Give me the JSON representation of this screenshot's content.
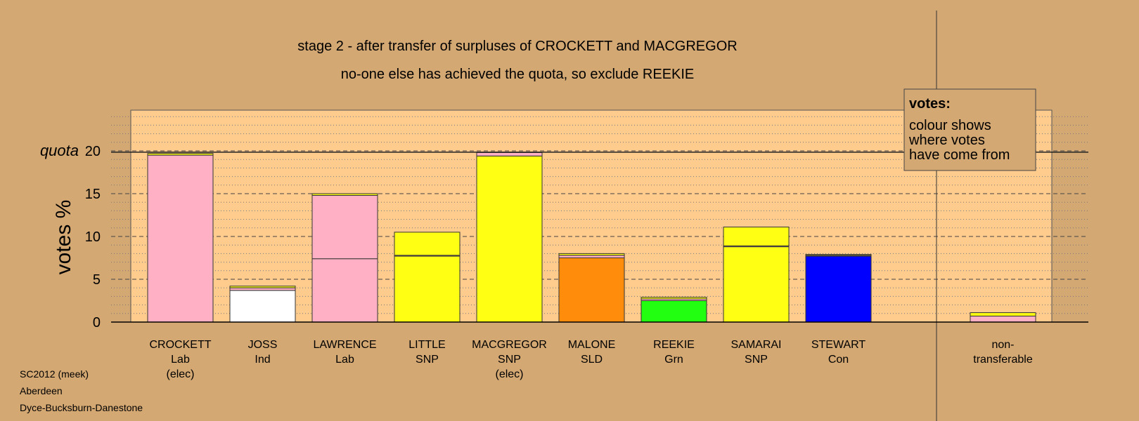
{
  "colors": {
    "page_background": "#D4A873",
    "plot_background": "#FFCC8E",
    "Lab": "#FFB0C4",
    "Ind": "#FFFFFF",
    "SNP": "#FFFF14",
    "SLD": "#FF8C0A",
    "Grn": "#22FF10",
    "Con": "#0000FF",
    "bar_outline": "#333333"
  },
  "footer": {
    "line1": "SC2012 (meek)",
    "line2": "Aberdeen",
    "line3": "Dyce-Bucksburn-Danestone"
  },
  "chart_data": {
    "type": "bar",
    "stacked": true,
    "title": "stage 2 - after transfer of surpluses of CROCKETT and MACGREGOR",
    "subtitle": "no-one else has achieved the quota, so exclude REEKIE",
    "ylabel": "votes %",
    "ylim": [
      0,
      24.7
    ],
    "yticks": [
      0,
      5,
      10,
      15,
      20
    ],
    "quota": 19.85,
    "quota_label": "quota",
    "grid": true,
    "legend": {
      "title": "votes:",
      "lines": [
        "colour shows",
        "where votes",
        "have come from"
      ],
      "placement": "top-right"
    },
    "candidates": [
      {
        "name": "CROCKETT",
        "party": "Lab",
        "note": "(elec)",
        "segments": [
          {
            "from": "Lab",
            "value": 19.5
          },
          {
            "from": "SNP",
            "value": 0.2
          }
        ]
      },
      {
        "name": "JOSS",
        "party": "Ind",
        "note": "",
        "segments": [
          {
            "from": "Ind",
            "value": 3.7
          },
          {
            "from": "Lab",
            "value": 0.3
          },
          {
            "from": "SNP",
            "value": 0.2
          }
        ]
      },
      {
        "name": "LAWRENCE",
        "party": "Lab",
        "note": "",
        "segments": [
          {
            "from": "Lab",
            "value": 7.4
          },
          {
            "from": "Lab",
            "value": 7.4
          },
          {
            "from": "SNP",
            "value": 0.2
          }
        ]
      },
      {
        "name": "LITTLE",
        "party": "SNP",
        "note": "",
        "segments": [
          {
            "from": "SNP",
            "value": 7.7
          },
          {
            "from": "Lab",
            "value": 0.1
          },
          {
            "from": "SNP",
            "value": 2.7
          }
        ]
      },
      {
        "name": "MACGREGOR",
        "party": "SNP",
        "note": "(elec)",
        "segments": [
          {
            "from": "SNP",
            "value": 19.4
          },
          {
            "from": "Lab",
            "value": 0.4
          }
        ]
      },
      {
        "name": "MALONE",
        "party": "SLD",
        "note": "",
        "segments": [
          {
            "from": "SLD",
            "value": 7.5
          },
          {
            "from": "Lab",
            "value": 0.3
          },
          {
            "from": "SNP",
            "value": 0.2
          }
        ]
      },
      {
        "name": "REEKIE",
        "party": "Grn",
        "note": "",
        "segments": [
          {
            "from": "Grn",
            "value": 2.5
          },
          {
            "from": "Lab",
            "value": 0.2
          },
          {
            "from": "SNP",
            "value": 0.2
          }
        ]
      },
      {
        "name": "SAMARAI",
        "party": "SNP",
        "note": "",
        "segments": [
          {
            "from": "SNP",
            "value": 8.8
          },
          {
            "from": "Lab",
            "value": 0.1
          },
          {
            "from": "SNP",
            "value": 2.2
          }
        ]
      },
      {
        "name": "STEWART",
        "party": "Con",
        "note": "",
        "segments": [
          {
            "from": "Con",
            "value": 7.7
          },
          {
            "from": "Lab",
            "value": 0.1
          },
          {
            "from": "SNP",
            "value": 0.1
          }
        ]
      }
    ],
    "nontransferable": {
      "label_lines": [
        "non-",
        "transferable"
      ],
      "segments": [
        {
          "from": "Lab",
          "value": 0.7
        },
        {
          "from": "SNP",
          "value": 0.4
        }
      ]
    }
  }
}
